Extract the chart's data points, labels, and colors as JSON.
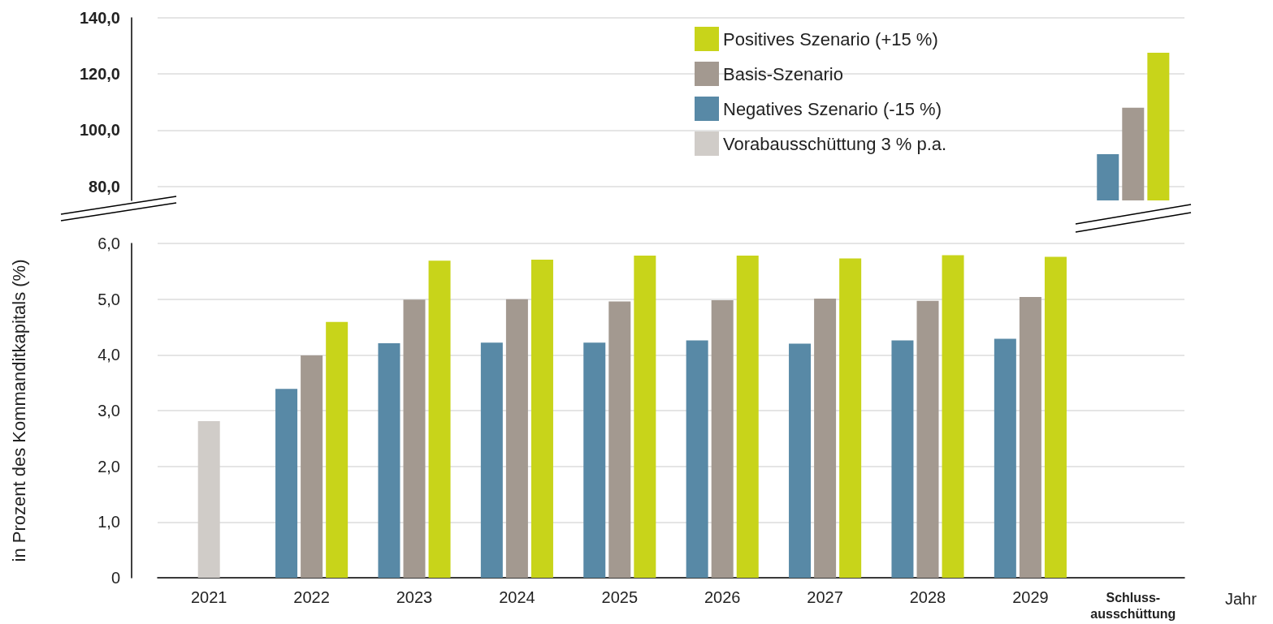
{
  "chart_data": [
    {
      "type": "bar",
      "categories": [
        null,
        null,
        null,
        null,
        null,
        null,
        null,
        null,
        null,
        null
      ],
      "series": [
        {
          "name": "Positives Szenario (+15 %)",
          "color": "#c8d41a",
          "values": [
            null,
            null,
            null,
            null,
            null,
            null,
            null,
            null,
            null,
            127.6
          ]
        },
        {
          "name": "Basis-Szenario",
          "color": "#a39990",
          "values": [
            null,
            null,
            null,
            null,
            null,
            null,
            null,
            null,
            null,
            108
          ]
        },
        {
          "name": "Negatives Szenario (-15 %)",
          "color": "#5889a6",
          "values": [
            null,
            null,
            null,
            null,
            null,
            null,
            null,
            null,
            null,
            91.5
          ]
        },
        {
          "name": "Vorabausschüttung 3 % p.a.",
          "color": "#d0ccc8",
          "values": [
            null,
            null,
            null,
            null,
            null,
            null,
            null,
            null,
            null,
            null
          ]
        }
      ],
      "ylim": [
        75,
        140
      ],
      "yticks": [
        {
          "value": 80,
          "label": "80,0"
        },
        {
          "value": 100,
          "label": "100,0"
        },
        {
          "value": 120,
          "label": "120,0"
        },
        {
          "value": 140,
          "label": "140,0"
        }
      ],
      "grid": "y",
      "legend": "top right",
      "tick_labels": "y"
    },
    {
      "type": "bar",
      "categories": [
        "2021",
        "2022",
        "2023",
        "2024",
        "2025",
        "2026",
        "2027",
        "2028",
        "2029",
        "Schluss-\nausschüttung"
      ],
      "ylabel": "in Prozent des Kommanditkapitals (%)",
      "xlabel": "Jahr",
      "series": [
        {
          "color": "#c8d41a",
          "values": [
            null,
            4.59,
            5.69,
            5.71,
            5.78,
            5.78,
            5.73,
            5.79,
            5.76,
            null
          ]
        },
        {
          "color": "#a39990",
          "values": [
            null,
            3.99,
            4.99,
            5.0,
            4.96,
            4.98,
            5.01,
            4.97,
            5.04,
            null
          ]
        },
        {
          "color": "#5889a6",
          "values": [
            null,
            3.39,
            4.21,
            4.22,
            4.22,
            4.26,
            4.2,
            4.26,
            4.29,
            null
          ]
        },
        {
          "color": "#d0ccc8",
          "values": [
            2.81,
            null,
            null,
            null,
            null,
            null,
            null,
            null,
            null,
            null
          ]
        }
      ],
      "ylim": [
        0,
        6
      ],
      "yticks": [
        0,
        {
          "value": 1,
          "label": "1,0"
        },
        {
          "value": 2,
          "label": "2,0"
        },
        {
          "value": 3,
          "label": "3,0"
        },
        {
          "value": 4,
          "label": "4,0"
        },
        {
          "value": 5,
          "label": "5,0"
        },
        {
          "value": 6,
          "label": "6,0"
        }
      ],
      "grid": "y"
    }
  ]
}
